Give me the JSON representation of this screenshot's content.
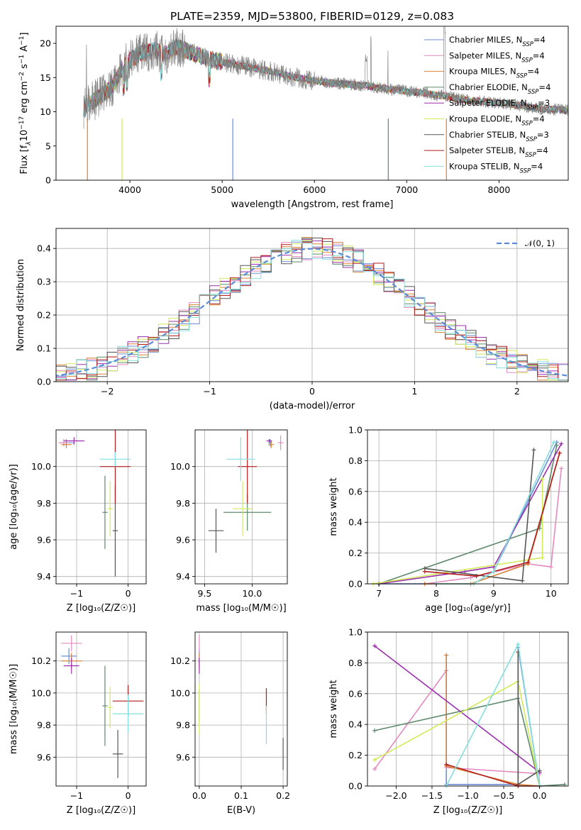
{
  "page_title": "PLATE=2359, MJD=53800, FIBERID=0129, z=0.083",
  "colors": {
    "Chabrier MILES": "#6a8fd6",
    "Salpeter MILES": "#e38ac0",
    "Kroupa MILES": "#d98232",
    "Chabrier ELODIE": "#5f8a6c",
    "Salpeter ELODIE": "#9b2fae",
    "Kroupa ELODIE": "#d2ea5a",
    "Chabrier STELIB": "#565656",
    "Salpeter STELIB": "#b21c1c",
    "Kroupa STELIB": "#86dedd",
    "data": "#808080",
    "gaussian": "#5b8bd8"
  },
  "chart_data": [
    {
      "id": "spectrum",
      "type": "line",
      "title": "PLATE=2359, MJD=53800, FIBERID=0129, z=0.083",
      "xlabel": "wavelength [Angstrom, rest frame]",
      "ylabel_parts": [
        "Flux [f",
        "λ",
        "10",
        "−17",
        " erg cm",
        "−2",
        " s",
        "−1",
        " A",
        "−1",
        "]"
      ],
      "xlim": [
        3200,
        8750
      ],
      "ylim": [
        0,
        22.5
      ],
      "xticks": [
        4000,
        5000,
        6000,
        7000,
        8000
      ],
      "yticks": [
        0,
        5,
        10,
        15,
        20
      ],
      "legend_position": "top-right",
      "continuum": {
        "x": [
          3500,
          3600,
          3800,
          3950,
          4100,
          4250,
          4400,
          4500,
          4700,
          4900,
          5100,
          5300,
          5500,
          5800,
          6000,
          6200,
          6400,
          6563,
          6700,
          7000,
          7200,
          7400,
          7600,
          7800,
          8000,
          8200,
          8400,
          8750
        ],
        "y": [
          10.5,
          11.5,
          13.5,
          17.0,
          18.5,
          19.0,
          18.5,
          19.5,
          18.5,
          17.5,
          17.0,
          16.5,
          16.0,
          15.0,
          14.5,
          14.2,
          14.0,
          13.8,
          13.5,
          13.0,
          12.7,
          12.3,
          11.8,
          11.5,
          11.3,
          11.0,
          10.5,
          10.2
        ]
      },
      "series": [
        {
          "name": "Chabrier MILES",
          "n_ssp": "4"
        },
        {
          "name": "Salpeter MILES",
          "n_ssp": "4"
        },
        {
          "name": "Kroupa MILES",
          "n_ssp": "4"
        },
        {
          "name": "Chabrier ELODIE",
          "n_ssp": "4"
        },
        {
          "name": "Salpeter ELODIE",
          "n_ssp": "3"
        },
        {
          "name": "Kroupa ELODIE",
          "n_ssp": "4"
        },
        {
          "name": "Chabrier STELIB",
          "n_ssp": "3"
        },
        {
          "name": "Salpeter STELIB",
          "n_ssp": "4"
        },
        {
          "name": "Kroupa STELIB",
          "n_ssp": "4"
        }
      ],
      "legend_subscript": "SSP"
    },
    {
      "id": "residuals",
      "type": "histogram",
      "xlabel": "(data-model)/error",
      "ylabel": "Normed distribution",
      "xlim": [
        -2.5,
        2.5
      ],
      "ylim": [
        0,
        0.46
      ],
      "xticks": [
        -2,
        -1,
        0,
        1,
        2
      ],
      "yticks": [
        0.0,
        0.1,
        0.2,
        0.3,
        0.4
      ],
      "bin_width": 0.1,
      "legend": {
        "label": "𝒩(0, 1)",
        "position": "top-right"
      },
      "grid": true
    },
    {
      "id": "age-vs-Z",
      "type": "scatter",
      "xlabel": "Z [log₁₀(Z/Z☉)]",
      "ylabel": "age  [log₁₀(age/yr)]",
      "xlim": [
        -1.4,
        0.35
      ],
      "ylim": [
        9.36,
        10.2
      ],
      "xticks": [
        -1,
        0
      ],
      "yticks": [
        9.4,
        9.6,
        9.8,
        10.0
      ],
      "grid": true,
      "points": [
        {
          "series": "Chabrier MILES",
          "x": -1.2,
          "y": 10.13,
          "xerr": 0.15,
          "yerr": 0.02
        },
        {
          "series": "Salpeter MILES",
          "x": -1.25,
          "y": 10.13,
          "xerr": 0.1,
          "yerr": 0.02
        },
        {
          "series": "Kroupa MILES",
          "x": -1.2,
          "y": 10.12,
          "xerr": 0.1,
          "yerr": 0.02
        },
        {
          "series": "Chabrier ELODIE",
          "x": -0.45,
          "y": 9.75,
          "xerr": 0.05,
          "yerr": 0.2
        },
        {
          "series": "Salpeter ELODIE",
          "x": -1.05,
          "y": 10.14,
          "xerr": 0.2,
          "yerr": 0.02
        },
        {
          "series": "Kroupa ELODIE",
          "x": -0.35,
          "y": 9.77,
          "xerr": 0.05,
          "yerr": 0.15
        },
        {
          "series": "Chabrier STELIB",
          "x": -0.25,
          "y": 9.65,
          "xerr": 0.05,
          "yerr": 0.25
        },
        {
          "series": "Salpeter STELIB",
          "x": -0.25,
          "y": 10.0,
          "xerr": 0.3,
          "yerr": 0.2
        },
        {
          "series": "Kroupa STELIB",
          "x": -0.25,
          "y": 10.04,
          "xerr": 0.3,
          "yerr": 0.04
        }
      ]
    },
    {
      "id": "age-vs-mass",
      "type": "scatter",
      "xlabel": "mass [log₁₀(M/M☉)]",
      "xlim": [
        9.4,
        10.37
      ],
      "ylim": [
        9.36,
        10.2
      ],
      "xticks": [
        9.5,
        10.0
      ],
      "yticks": [
        9.4,
        9.6,
        9.8,
        10.0
      ],
      "grid": true,
      "points": [
        {
          "series": "Chabrier MILES",
          "x": 10.19,
          "y": 10.13,
          "xerr": 0.02,
          "yerr": 0.02
        },
        {
          "series": "Salpeter MILES",
          "x": 10.3,
          "y": 10.13,
          "xerr": 0.03,
          "yerr": 0.04
        },
        {
          "series": "Kroupa MILES",
          "x": 10.2,
          "y": 10.12,
          "xerr": 0.03,
          "yerr": 0.02
        },
        {
          "series": "Chabrier ELODIE",
          "x": 9.95,
          "y": 9.75,
          "xerr": 0.25,
          "yerr": 0.1
        },
        {
          "series": "Salpeter ELODIE",
          "x": 10.18,
          "y": 10.14,
          "xerr": 0.03,
          "yerr": 0.01
        },
        {
          "series": "Kroupa ELODIE",
          "x": 9.9,
          "y": 9.77,
          "xerr": 0.1,
          "yerr": 0.15
        },
        {
          "series": "Chabrier STELIB",
          "x": 9.62,
          "y": 9.65,
          "xerr": 0.08,
          "yerr": 0.12
        },
        {
          "series": "Salpeter STELIB",
          "x": 9.95,
          "y": 10.0,
          "xerr": 0.1,
          "yerr": 0.2
        },
        {
          "series": "Kroupa STELIB",
          "x": 9.88,
          "y": 10.04,
          "xerr": 0.15,
          "yerr": 0.12
        }
      ]
    },
    {
      "id": "massweight-vs-age",
      "type": "line",
      "xlabel": "age  [log₁₀(age/yr)]",
      "ylabel": "mass weight",
      "xlim": [
        6.8,
        10.3
      ],
      "ylim": [
        0,
        1.0
      ],
      "xticks": [
        7,
        8,
        9,
        10
      ],
      "yticks": [
        0.0,
        0.2,
        0.4,
        0.6,
        0.8,
        1.0
      ],
      "grid": true,
      "series": [
        {
          "name": "Chabrier MILES",
          "x": [
            7.0,
            8.65,
            9.0,
            10.1
          ],
          "y": [
            0.0,
            0.0,
            0.08,
            0.92
          ]
        },
        {
          "name": "Salpeter MILES",
          "x": [
            7.8,
            8.6,
            9.6,
            10.0,
            10.18
          ],
          "y": [
            0.0,
            0.04,
            0.13,
            0.11,
            0.75
          ]
        },
        {
          "name": "Kroupa MILES",
          "x": [
            7.8,
            8.6,
            9.6,
            10.15
          ],
          "y": [
            0.0,
            0.0,
            0.13,
            0.85
          ]
        },
        {
          "name": "Chabrier ELODIE",
          "x": [
            7.0,
            9.8,
            10.1
          ],
          "y": [
            0.0,
            0.36,
            0.9
          ]
        },
        {
          "name": "Salpeter ELODIE",
          "x": [
            7.0,
            8.5,
            9.0,
            10.18
          ],
          "y": [
            0.0,
            0.08,
            0.11,
            0.91
          ]
        },
        {
          "name": "Kroupa ELODIE",
          "x": [
            6.9,
            9.85,
            9.85
          ],
          "y": [
            0.0,
            0.17,
            0.68
          ]
        },
        {
          "name": "Chabrier STELIB",
          "x": [
            7.8,
            9.5,
            9.7
          ],
          "y": [
            0.1,
            0.02,
            0.87
          ]
        },
        {
          "name": "Salpeter STELIB",
          "x": [
            7.8,
            8.7,
            9.6,
            10.15
          ],
          "y": [
            0.08,
            0.05,
            0.14,
            0.85
          ]
        },
        {
          "name": "Kroupa STELIB",
          "x": [
            8.0,
            8.65,
            9.0,
            10.05
          ],
          "y": [
            0.0,
            0.0,
            0.08,
            0.92
          ]
        }
      ]
    },
    {
      "id": "mass-vs-Z",
      "type": "scatter",
      "xlabel": "Z [log₁₀(Z/Z☉)]",
      "ylabel": "mass [log₁₀(M/M☉)]",
      "xlim": [
        -1.4,
        0.35
      ],
      "ylim": [
        9.42,
        10.38
      ],
      "xticks": [
        -1,
        0
      ],
      "yticks": [
        9.6,
        9.8,
        10.0,
        10.2
      ],
      "grid": true,
      "points": [
        {
          "series": "Chabrier MILES",
          "x": -1.15,
          "y": 10.23,
          "xerr": 0.15,
          "yerr": 0.05
        },
        {
          "series": "Salpeter MILES",
          "x": -1.1,
          "y": 10.31,
          "xerr": 0.2,
          "yerr": 0.05
        },
        {
          "series": "Kroupa MILES",
          "x": -1.1,
          "y": 10.2,
          "xerr": 0.2,
          "yerr": 0.05
        },
        {
          "series": "Chabrier ELODIE",
          "x": -0.45,
          "y": 9.92,
          "xerr": 0.05,
          "yerr": 0.25
        },
        {
          "series": "Salpeter ELODIE",
          "x": -1.1,
          "y": 10.17,
          "xerr": 0.15,
          "yerr": 0.05
        },
        {
          "series": "Kroupa ELODIE",
          "x": -0.35,
          "y": 9.91,
          "xerr": 0.05,
          "yerr": 0.13
        },
        {
          "series": "Chabrier STELIB",
          "x": -0.2,
          "y": 9.62,
          "xerr": 0.1,
          "yerr": 0.15
        },
        {
          "series": "Salpeter STELIB",
          "x": 0.0,
          "y": 9.95,
          "xerr": 0.3,
          "yerr": 0.1
        },
        {
          "series": "Kroupa STELIB",
          "x": 0.0,
          "y": 9.87,
          "xerr": 0.3,
          "yerr": 0.12
        }
      ]
    },
    {
      "id": "mass-vs-ebv",
      "type": "scatter",
      "xlabel": "E(B-V)",
      "xlim": [
        -0.01,
        0.21
      ],
      "ylim": [
        9.42,
        10.38
      ],
      "xticks": [
        0.0,
        0.1,
        0.2
      ],
      "yticks": [
        9.6,
        9.8,
        10.0,
        10.2
      ],
      "grid": true,
      "points": [
        {
          "series": "Chabrier MILES",
          "x": 0.0,
          "y": 10.23,
          "yerr": 0.05
        },
        {
          "series": "Salpeter MILES",
          "x": 0.0,
          "y": 10.31,
          "yerr": 0.05
        },
        {
          "series": "Kroupa MILES",
          "x": 0.0,
          "y": 10.2,
          "yerr": 0.05
        },
        {
          "series": "Chabrier ELODIE",
          "x": 0.0,
          "y": 9.92,
          "yerr": 0.1
        },
        {
          "series": "Salpeter ELODIE",
          "x": 0.0,
          "y": 10.17,
          "yerr": 0.05
        },
        {
          "series": "Kroupa ELODIE",
          "x": 0.0,
          "y": 9.9,
          "yerr": 0.16
        },
        {
          "series": "Chabrier STELIB",
          "x": 0.2,
          "y": 9.62,
          "yerr": 0.1
        },
        {
          "series": "Salpeter STELIB",
          "x": 0.16,
          "y": 9.95,
          "yerr": 0.08
        },
        {
          "series": "Kroupa STELIB",
          "x": 0.16,
          "y": 9.8,
          "yerr": 0.12
        }
      ]
    },
    {
      "id": "massweight-vs-Z",
      "type": "line",
      "xlabel": "Z [log₁₀(Z/Z☉)]",
      "ylabel": "mass weight",
      "xlim": [
        -2.4,
        0.4
      ],
      "ylim": [
        0,
        1.0
      ],
      "xticks": [
        -2.0,
        -1.5,
        -1.0,
        -0.5,
        0.0
      ],
      "yticks": [
        0.0,
        0.2,
        0.4,
        0.6,
        0.8,
        1.0
      ],
      "grid": true,
      "series": [
        {
          "name": "Chabrier MILES",
          "x": [
            -1.3,
            -1.3,
            -0.3,
            -0.3,
            0.0
          ],
          "y": [
            0.85,
            0.01,
            0.01,
            0.9,
            0.0
          ]
        },
        {
          "name": "Salpeter MILES",
          "x": [
            -2.3,
            -1.3,
            -1.3,
            0.0
          ],
          "y": [
            0.11,
            0.75,
            0.12,
            0.08
          ]
        },
        {
          "name": "Kroupa MILES",
          "x": [
            -1.3,
            -1.3,
            -0.3,
            0.0
          ],
          "y": [
            0.85,
            0.13,
            0.01,
            0.0
          ]
        },
        {
          "name": "Chabrier ELODIE",
          "x": [
            -2.3,
            -0.3,
            0.0,
            0.35
          ],
          "y": [
            0.36,
            0.57,
            0.0,
            0.01
          ]
        },
        {
          "name": "Salpeter ELODIE",
          "x": [
            -2.3,
            0.0
          ],
          "y": [
            0.91,
            0.09
          ]
        },
        {
          "name": "Kroupa ELODIE",
          "x": [
            -2.3,
            -0.3,
            0.0
          ],
          "y": [
            0.17,
            0.68,
            0.0
          ]
        },
        {
          "name": "Chabrier STELIB",
          "x": [
            -0.3,
            -0.3,
            0.0
          ],
          "y": [
            0.87,
            0.01,
            0.1
          ]
        },
        {
          "name": "Salpeter STELIB",
          "x": [
            -1.3,
            -0.3,
            0.0
          ],
          "y": [
            0.14,
            0.0,
            0.0
          ]
        },
        {
          "name": "Kroupa STELIB",
          "x": [
            -1.3,
            -0.3,
            0.0
          ],
          "y": [
            0.0,
            0.92,
            0.0
          ]
        }
      ]
    }
  ]
}
